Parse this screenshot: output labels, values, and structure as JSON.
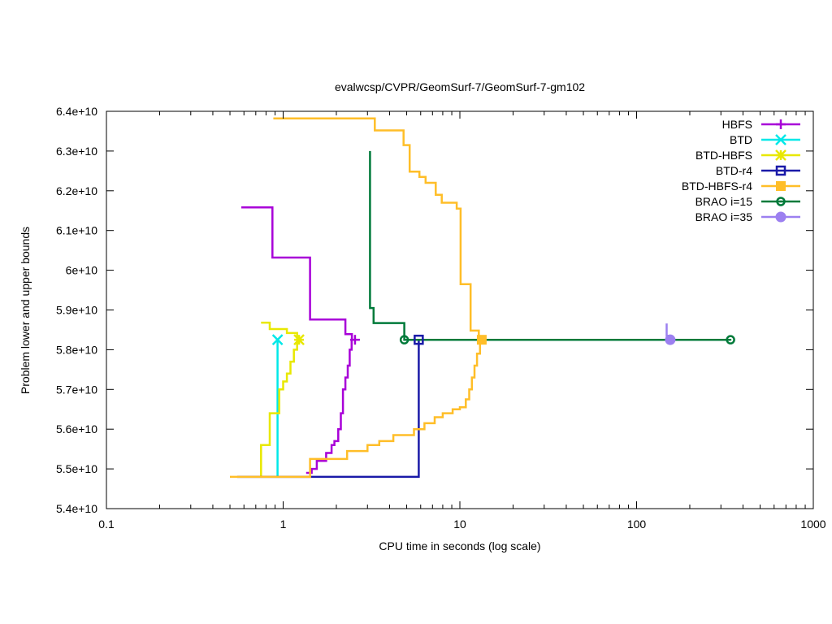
{
  "chart_data": {
    "type": "line",
    "title": "evalwcsp/CVPR/GeomSurf-7/GeomSurf-7-gm102",
    "xlabel": "CPU time in seconds (log scale)",
    "ylabel": "Problem lower and upper bounds",
    "xscale": "log",
    "xlim": [
      0.1,
      1000
    ],
    "ylim": [
      54000000000,
      64000000000
    ],
    "grid": false,
    "legend_position": "top-right",
    "x_ticks": [
      {
        "value": 0.1,
        "label": "0.1"
      },
      {
        "value": 1,
        "label": "1"
      },
      {
        "value": 10,
        "label": "10"
      },
      {
        "value": 100,
        "label": "100"
      },
      {
        "value": 1000,
        "label": "1000"
      }
    ],
    "y_ticks": [
      {
        "value": 54000000000,
        "label": "5.4e+10"
      },
      {
        "value": 55000000000,
        "label": "5.5e+10"
      },
      {
        "value": 56000000000,
        "label": "5.6e+10"
      },
      {
        "value": 57000000000,
        "label": "5.7e+10"
      },
      {
        "value": 58000000000,
        "label": "5.8e+10"
      },
      {
        "value": 59000000000,
        "label": "5.9e+10"
      },
      {
        "value": 60000000000,
        "label": "6e+10"
      },
      {
        "value": 61000000000,
        "label": "6.1e+10"
      },
      {
        "value": 62000000000,
        "label": "6.2e+10"
      },
      {
        "value": 63000000000,
        "label": "6.3e+10"
      },
      {
        "value": 64000000000,
        "label": "6.4e+10"
      }
    ],
    "series": [
      {
        "name": "HBFS",
        "color": "#a800d8",
        "marker": "plus",
        "segments": [
          [
            [
              0.58,
              61580000000
            ],
            [
              0.87,
              61580000000
            ],
            [
              0.87,
              60320000000
            ],
            [
              1.42,
              60320000000
            ],
            [
              1.42,
              58760000000
            ],
            [
              2.25,
              58760000000
            ],
            [
              2.25,
              58390000000
            ],
            [
              2.45,
              58390000000
            ],
            [
              2.45,
              58250000000
            ],
            [
              2.55,
              58250000000
            ]
          ],
          [
            [
              1.35,
              54900000000
            ],
            [
              1.45,
              54900000000
            ],
            [
              1.45,
              55000000000
            ],
            [
              1.55,
              55000000000
            ],
            [
              1.55,
              55200000000
            ],
            [
              1.75,
              55200000000
            ],
            [
              1.75,
              55400000000
            ],
            [
              1.88,
              55400000000
            ],
            [
              1.88,
              55600000000
            ],
            [
              1.95,
              55600000000
            ],
            [
              1.95,
              55700000000
            ],
            [
              2.05,
              55700000000
            ],
            [
              2.05,
              56000000000
            ],
            [
              2.12,
              56000000000
            ],
            [
              2.12,
              56400000000
            ],
            [
              2.18,
              56400000000
            ],
            [
              2.18,
              57000000000
            ],
            [
              2.25,
              57000000000
            ],
            [
              2.25,
              57300000000
            ],
            [
              2.32,
              57300000000
            ],
            [
              2.32,
              57600000000
            ],
            [
              2.38,
              57600000000
            ],
            [
              2.38,
              58000000000
            ],
            [
              2.44,
              58000000000
            ],
            [
              2.44,
              58250000000
            ],
            [
              2.55,
              58250000000
            ]
          ]
        ],
        "marker_points": [
          [
            2.55,
            58250000000
          ]
        ]
      },
      {
        "name": "BTD",
        "color": "#00e8e8",
        "marker": "x",
        "segments": [
          [
            [
              0.93,
              54800000000
            ],
            [
              0.93,
              58250000000
            ]
          ]
        ],
        "marker_points": [
          [
            0.93,
            58250000000
          ]
        ]
      },
      {
        "name": "BTD-HBFS",
        "color": "#e8e800",
        "marker": "star",
        "segments": [
          [
            [
              0.75,
              58680000000
            ],
            [
              0.84,
              58680000000
            ],
            [
              0.84,
              58520000000
            ],
            [
              1.05,
              58520000000
            ],
            [
              1.05,
              58420000000
            ],
            [
              1.2,
              58420000000
            ],
            [
              1.2,
              58250000000
            ],
            [
              1.23,
              58250000000
            ]
          ],
          [
            [
              0.75,
              54800000000
            ],
            [
              0.75,
              55600000000
            ],
            [
              0.84,
              55600000000
            ],
            [
              0.84,
              56400000000
            ],
            [
              0.95,
              56400000000
            ],
            [
              0.95,
              57000000000
            ],
            [
              1.0,
              57000000000
            ],
            [
              1.0,
              57200000000
            ],
            [
              1.05,
              57200000000
            ],
            [
              1.05,
              57400000000
            ],
            [
              1.1,
              57400000000
            ],
            [
              1.1,
              57700000000
            ],
            [
              1.15,
              57700000000
            ],
            [
              1.15,
              58000000000
            ],
            [
              1.2,
              58000000000
            ],
            [
              1.2,
              58250000000
            ],
            [
              1.23,
              58250000000
            ]
          ]
        ],
        "marker_points": [
          [
            1.23,
            58250000000
          ]
        ]
      },
      {
        "name": "BTD-r4",
        "color": "#1a1aa8",
        "marker": "square-open",
        "segments": [
          [
            [
              0.55,
              54800000000
            ],
            [
              5.85,
              54800000000
            ],
            [
              5.85,
              58250000000
            ]
          ]
        ],
        "marker_points": [
          [
            5.85,
            58250000000
          ]
        ]
      },
      {
        "name": "BTD-HBFS-r4",
        "color": "#ffbe28",
        "marker": "square-filled",
        "segments": [
          [
            [
              0.88,
              63820000000
            ],
            [
              3.3,
              63820000000
            ],
            [
              3.3,
              63520000000
            ],
            [
              4.8,
              63520000000
            ],
            [
              4.8,
              63150000000
            ],
            [
              5.2,
              63150000000
            ],
            [
              5.2,
              62480000000
            ],
            [
              5.9,
              62480000000
            ],
            [
              5.9,
              62350000000
            ],
            [
              6.4,
              62350000000
            ],
            [
              6.4,
              62200000000
            ],
            [
              7.3,
              62200000000
            ],
            [
              7.3,
              61900000000
            ],
            [
              7.9,
              61900000000
            ],
            [
              7.9,
              61700000000
            ],
            [
              9.6,
              61700000000
            ],
            [
              9.6,
              61550000000
            ],
            [
              10.1,
              61550000000
            ],
            [
              10.1,
              59650000000
            ],
            [
              11.5,
              59650000000
            ],
            [
              11.5,
              58480000000
            ],
            [
              12.8,
              58480000000
            ],
            [
              12.8,
              58250000000
            ],
            [
              13.3,
              58250000000
            ]
          ],
          [
            [
              0.5,
              54800000000
            ],
            [
              1.42,
              54800000000
            ],
            [
              1.42,
              55250000000
            ],
            [
              2.3,
              55250000000
            ],
            [
              2.3,
              55450000000
            ],
            [
              3.0,
              55450000000
            ],
            [
              3.0,
              55600000000
            ],
            [
              3.5,
              55600000000
            ],
            [
              3.5,
              55700000000
            ],
            [
              4.2,
              55700000000
            ],
            [
              4.2,
              55850000000
            ],
            [
              5.5,
              55850000000
            ],
            [
              5.5,
              56000000000
            ],
            [
              6.3,
              56000000000
            ],
            [
              6.3,
              56150000000
            ],
            [
              7.2,
              56150000000
            ],
            [
              7.2,
              56300000000
            ],
            [
              8.0,
              56300000000
            ],
            [
              8.0,
              56400000000
            ],
            [
              9.1,
              56400000000
            ],
            [
              9.1,
              56500000000
            ],
            [
              10.0,
              56500000000
            ],
            [
              10.0,
              56550000000
            ],
            [
              10.8,
              56550000000
            ],
            [
              10.8,
              56750000000
            ],
            [
              11.3,
              56750000000
            ],
            [
              11.3,
              57000000000
            ],
            [
              11.7,
              57000000000
            ],
            [
              11.7,
              57300000000
            ],
            [
              12.1,
              57300000000
            ],
            [
              12.1,
              57600000000
            ],
            [
              12.5,
              57600000000
            ],
            [
              12.5,
              57900000000
            ],
            [
              13.0,
              57900000000
            ],
            [
              13.0,
              58250000000
            ],
            [
              13.3,
              58250000000
            ]
          ]
        ],
        "marker_points": [
          [
            13.3,
            58250000000
          ]
        ]
      },
      {
        "name": "BRAO i=15",
        "color": "#007a3a",
        "marker": "circle-dot",
        "segments": [
          [
            [
              3.1,
              63000000000
            ],
            [
              3.1,
              59050000000
            ],
            [
              3.25,
              59050000000
            ],
            [
              3.25,
              58670000000
            ],
            [
              4.85,
              58670000000
            ],
            [
              4.85,
              58250000000
            ],
            [
              340,
              58250000000
            ]
          ]
        ],
        "marker_points": [
          [
            4.85,
            58250000000
          ],
          [
            340,
            58250000000
          ]
        ]
      },
      {
        "name": "BRAO i=35",
        "color": "#9c80f0",
        "marker": "circle-filled",
        "segments": [
          [
            [
              148,
              58660000000
            ],
            [
              148,
              58350000000
            ],
            [
              150,
              58350000000
            ],
            [
              150,
              58250000000
            ],
            [
              155,
              58250000000
            ]
          ]
        ],
        "marker_points": [
          [
            155,
            58250000000
          ]
        ]
      }
    ]
  }
}
